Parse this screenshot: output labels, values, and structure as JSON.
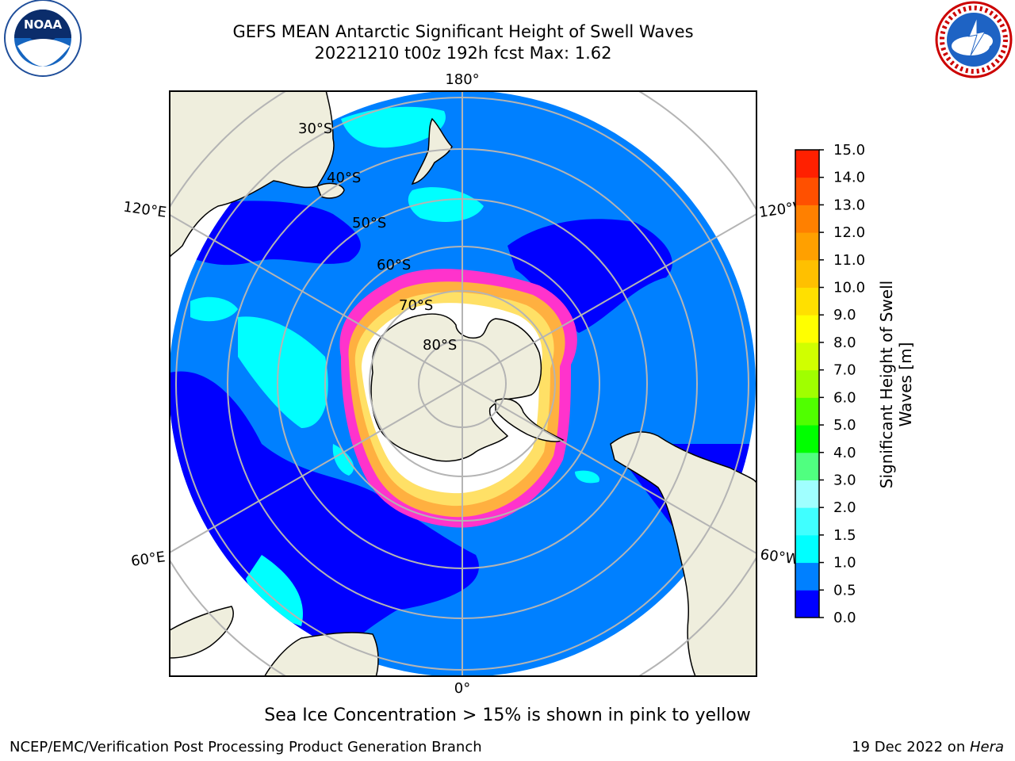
{
  "header": {
    "title_line1": "GEFS MEAN Antarctic Significant Height of Swell Waves",
    "title_line2": "20221210 t00z 192h fcst   Max: 1.62"
  },
  "logos": {
    "left_name": "noaa-logo",
    "left_text": "NOAA",
    "right_name": "national-weather-service-logo"
  },
  "map": {
    "projection": "south-polar-stereographic",
    "lon_labels": {
      "top": "180°",
      "bottom": "0°",
      "upper_left": "120°E",
      "upper_right": "120°W",
      "lower_left": "60°E",
      "lower_right": "60°W"
    },
    "lat_labels": [
      "30°S",
      "40°S",
      "50°S",
      "60°S",
      "70°S",
      "80°S"
    ],
    "ocean_color": "#0080ff",
    "land_color": "#efeedd",
    "ice_color_range": [
      "#ff33cc",
      "#ffe066"
    ]
  },
  "colorbar": {
    "label": "Significant Height of Swell Waves [m]",
    "ticks": [
      "0.0",
      "0.5",
      "1.0",
      "1.5",
      "2.0",
      "3.0",
      "4.0",
      "5.0",
      "6.0",
      "7.0",
      "8.0",
      "9.0",
      "10.0",
      "11.0",
      "12.0",
      "13.0",
      "14.0",
      "15.0"
    ],
    "colors": [
      "#0000ff",
      "#0080ff",
      "#00ffff",
      "#40ffff",
      "#a0ffff",
      "#50ff80",
      "#00ff00",
      "#50ff00",
      "#a0ff00",
      "#d0ff00",
      "#ffff00",
      "#ffe000",
      "#ffc000",
      "#ffa000",
      "#ff8000",
      "#ff5000",
      "#ff2000"
    ]
  },
  "note": "Sea Ice Concentration > 15% is shown in pink to yellow",
  "footer": {
    "left": "NCEP/EMC/Verification Post Processing Product Generation Branch",
    "right_prefix": "19 Dec 2022 on ",
    "right_host": "Hera"
  }
}
